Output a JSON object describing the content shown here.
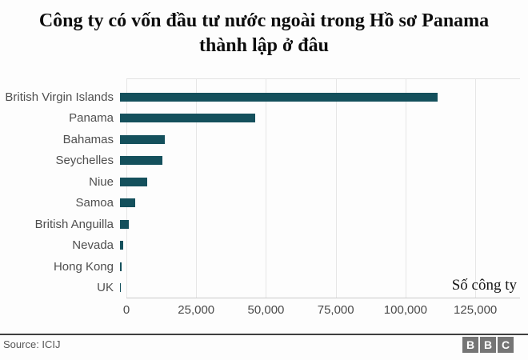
{
  "title": "Công ty có vốn đầu tư nước ngoài trong Hồ sơ Panama thành lập ở đâu",
  "chart_data": {
    "type": "bar",
    "orientation": "horizontal",
    "categories": [
      "British Virgin Islands",
      "Panama",
      "Bahamas",
      "Seychelles",
      "Niue",
      "Samoa",
      "British Anguilla",
      "Nevada",
      "Hong Kong",
      "UK"
    ],
    "values": [
      113648,
      48360,
      15915,
      15182,
      9611,
      5307,
      3253,
      1260,
      452,
      148
    ],
    "xlabel": "Số công ty",
    "ylabel": "",
    "xticks": [
      0,
      25000,
      50000,
      75000,
      100000,
      125000
    ],
    "xtick_labels": [
      "0",
      "25,000",
      "50,000",
      "75,000",
      "100,000",
      "125,000"
    ],
    "xlim": [
      0,
      141000
    ],
    "grid": true,
    "legend": false,
    "bar_color": "#14505c",
    "gridline_color": "#e6e6e6"
  },
  "footer": {
    "source": "Source: ICIJ",
    "bbc_letters": [
      "B",
      "B",
      "C"
    ]
  }
}
